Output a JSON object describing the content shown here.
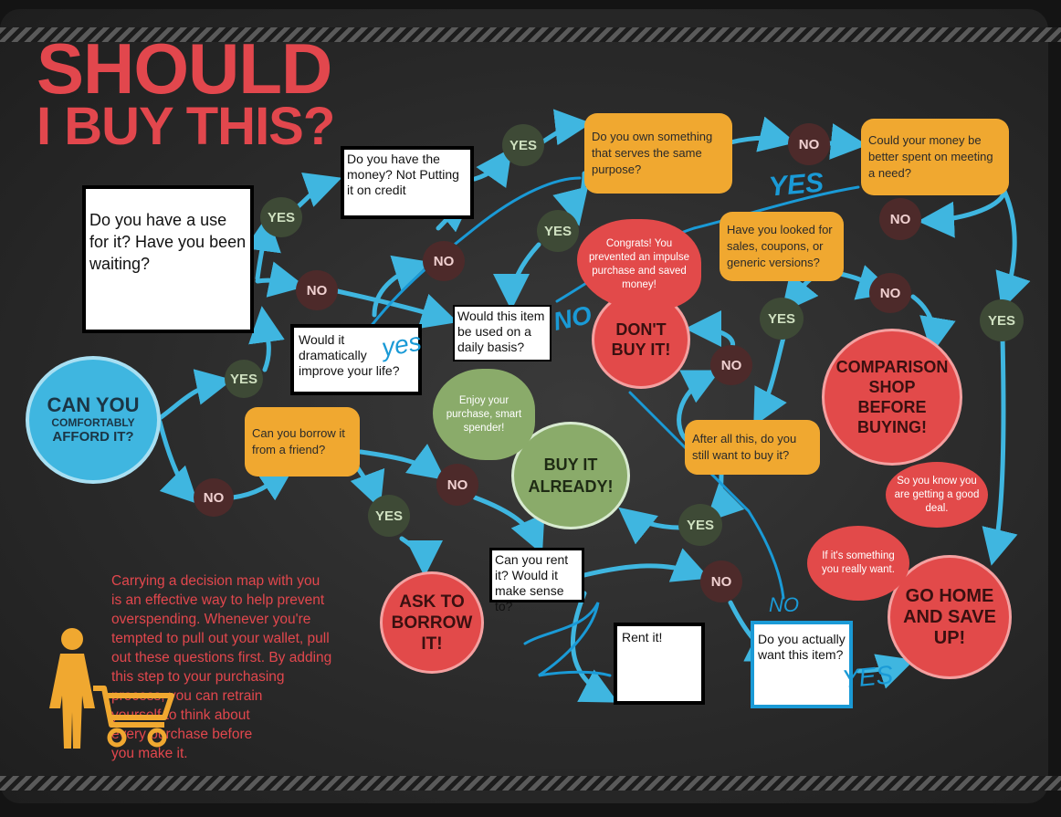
{
  "title": {
    "line1": "SHOULD",
    "line2": "I BUY THIS?"
  },
  "start": {
    "line1": "CAN YOU",
    "line2": "COMFORTABLY",
    "line3": "AFFORD IT?"
  },
  "labels": {
    "yes": "YES",
    "no": "NO"
  },
  "questions": {
    "use": "Do you have a use for it? Have you been waiting?",
    "money": "Do you have the money? Not Putting it on credit",
    "own": "Do you own something that serves the same purpose?",
    "better": "Could your money be better spent on meeting a need?",
    "sales": "Have you looked for sales, coupons, or generic versions?",
    "improve": "Would it dramatically improve your life?",
    "daily": "Would this item be used on a daily basis?",
    "borrow": "Can you borrow it from a friend?",
    "rent": "Can you rent it? Would it make sense to?",
    "afterall": "After all this, do you still want to buy it?",
    "actually": "Do you actually want this item?"
  },
  "results": {
    "dont": "DON'T BUY IT!",
    "buy": "BUY IT ALREADY!",
    "compare": "COMPARISON SHOP BEFORE BUYING!",
    "home": "GO HOME AND SAVE UP!",
    "ask": "ASK TO BORROW IT!",
    "rent": "Rent it!"
  },
  "bubbles": {
    "congrats": "Congrats! You prevented an impulse purchase and saved money!",
    "enjoy": "Enjoy your purchase, smart spender!",
    "deal": "So you know you are getting a good deal.",
    "really": "If it's something you really want."
  },
  "handwriting": {
    "yes1": "yes",
    "yes2": "YES",
    "yes3": "YES",
    "no1": "NO",
    "no2": "NO"
  },
  "note": "Carrying a decision map with you\nis an effective way to help prevent\noverspending. Whenever you're\ntempted to pull out your wallet, pull\nout these questions first. By adding\n  this step to your purchasing\n              process, you can retrain\n            yourself to think about\n          every purchase before\n        you make it.",
  "colors": {
    "red": "#e2474d",
    "orange": "#f0a830",
    "blue": "#3fb6e0",
    "green": "#8aab6a",
    "ink": "#1a9ad6"
  },
  "icons": [
    "woman-icon",
    "shopping-cart-icon"
  ]
}
